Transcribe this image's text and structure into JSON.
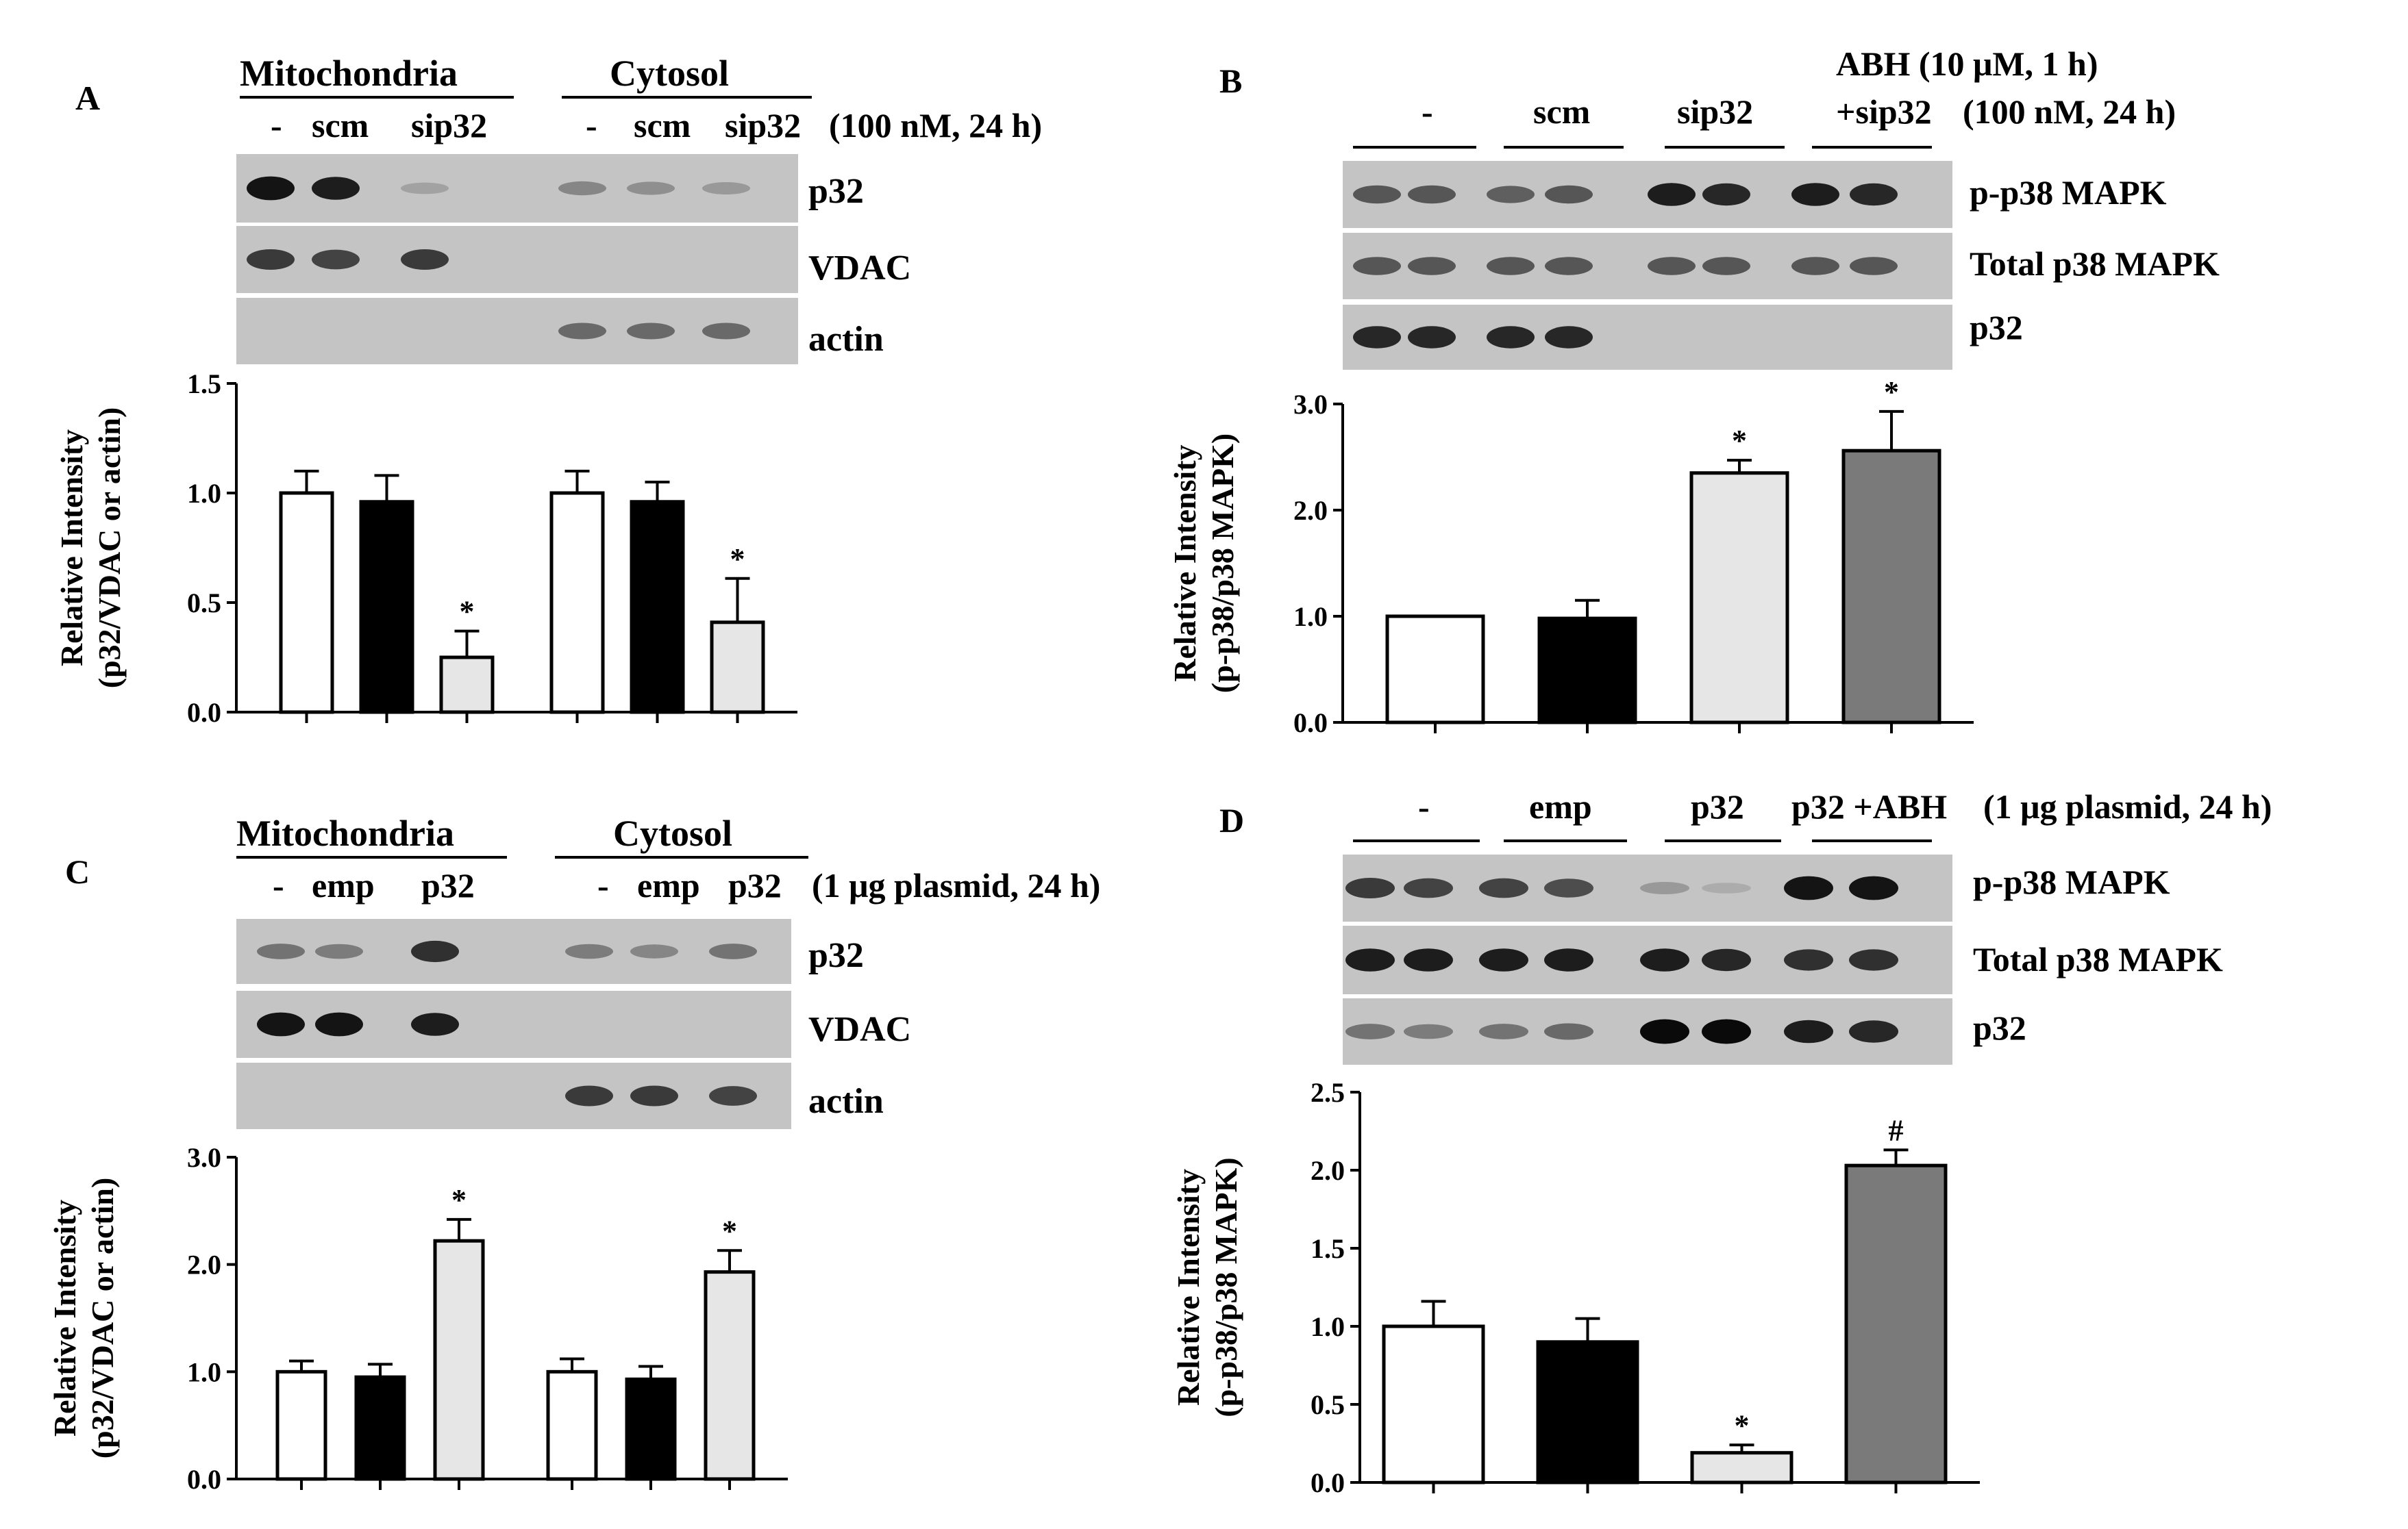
{
  "colors": {
    "control": "#ffffff",
    "scm_or_emp": "#000000",
    "sip32_or_p32": "#e6e6e6",
    "abh": "#7a7a7a",
    "blot_bg": "#c4c4c4",
    "axis": "#000000"
  },
  "panels": [
    {
      "id": "A",
      "letter": "A",
      "groups": [
        {
          "label": "Mitochondria",
          "lanes": [
            "-",
            "scm",
            "sip32"
          ]
        },
        {
          "label": "Cytosol",
          "lanes": [
            "-",
            "scm",
            "sip32"
          ]
        }
      ],
      "treatment_note": "(100 nM, 24 h)",
      "blots": [
        {
          "label": "p32",
          "intensity": [
            0.95,
            0.9,
            0.2,
            0.35,
            0.3,
            0.25
          ]
        },
        {
          "label": "VDAC",
          "intensity": [
            0.75,
            0.7,
            0.75,
            0,
            0,
            0
          ]
        },
        {
          "label": "actin",
          "intensity": [
            0,
            0,
            0,
            0.5,
            0.5,
            0.5
          ]
        }
      ]
    },
    {
      "id": "B",
      "letter": "B",
      "lane_groups": [
        "-",
        "scm",
        "sip32",
        "+sip32"
      ],
      "header_line": "ABH (10 μM, 1 h)",
      "treatment_note": "(100 nM, 24 h)",
      "blots": [
        {
          "label": "p-p38 MAPK",
          "intensity": [
            0.6,
            0.6,
            0.55,
            0.6,
            0.9,
            0.85,
            0.9,
            0.85
          ]
        },
        {
          "label": "Total p38 MAPK",
          "intensity": [
            0.6,
            0.6,
            0.6,
            0.6,
            0.6,
            0.6,
            0.6,
            0.6
          ]
        },
        {
          "label": "p32",
          "intensity": [
            0.85,
            0.85,
            0.85,
            0.85,
            0,
            0,
            0,
            0
          ]
        }
      ]
    },
    {
      "id": "C",
      "letter": "C",
      "groups": [
        {
          "label": "Mitochondria",
          "lanes": [
            "-",
            "emp",
            "p32"
          ]
        },
        {
          "label": "Cytosol",
          "lanes": [
            "-",
            "emp",
            "p32"
          ]
        }
      ],
      "treatment_note": "(1 μg plasmid, 24 h)",
      "blots": [
        {
          "label": "p32",
          "intensity": [
            0.45,
            0.4,
            0.8,
            0.4,
            0.35,
            0.45
          ]
        },
        {
          "label": "VDAC",
          "intensity": [
            0.95,
            0.95,
            0.9,
            0,
            0,
            0
          ]
        },
        {
          "label": "actin",
          "intensity": [
            0,
            0,
            0,
            0.75,
            0.75,
            0.7
          ]
        }
      ]
    },
    {
      "id": "D",
      "letter": "D",
      "lane_groups": [
        "-",
        "emp",
        "p32",
        "p32 +ABH"
      ],
      "treatment_note": "(1 μg plasmid, 24 h)",
      "blots": [
        {
          "label": "p-p38 MAPK",
          "intensity": [
            0.75,
            0.7,
            0.7,
            0.65,
            0.25,
            0.15,
            0.95,
            0.95
          ]
        },
        {
          "label": "Total p38 MAPK",
          "intensity": [
            0.9,
            0.9,
            0.9,
            0.9,
            0.9,
            0.85,
            0.8,
            0.8
          ]
        },
        {
          "label": "p32",
          "intensity": [
            0.45,
            0.4,
            0.45,
            0.5,
            1.0,
            1.0,
            0.9,
            0.85
          ]
        }
      ]
    }
  ],
  "chart_data": [
    {
      "panel": "A",
      "type": "bar",
      "ylabel": "Relative Intensity",
      "ylabel2": "(p32/VDAC or actin)",
      "ylim": [
        0,
        1.5
      ],
      "yticks": [
        "0.0",
        "0.5",
        "1.0",
        "1.5"
      ],
      "groups": [
        {
          "bars": [
            {
              "value": 1.0,
              "error": 0.1,
              "fill": "control",
              "sig": ""
            },
            {
              "value": 0.96,
              "error": 0.12,
              "fill": "scm_or_emp",
              "sig": ""
            },
            {
              "value": 0.25,
              "error": 0.12,
              "fill": "sip32_or_p32",
              "sig": "*"
            }
          ]
        },
        {
          "bars": [
            {
              "value": 1.0,
              "error": 0.1,
              "fill": "control",
              "sig": ""
            },
            {
              "value": 0.96,
              "error": 0.09,
              "fill": "scm_or_emp",
              "sig": ""
            },
            {
              "value": 0.41,
              "error": 0.2,
              "fill": "sip32_or_p32",
              "sig": "*"
            }
          ]
        }
      ]
    },
    {
      "panel": "B",
      "type": "bar",
      "ylabel": "Relative Intensity",
      "ylabel2": "(p-p38/p38 MAPK)",
      "ylim": [
        0,
        3.0
      ],
      "yticks": [
        "0.0",
        "1.0",
        "2.0",
        "3.0"
      ],
      "groups": [
        {
          "bars": [
            {
              "value": 1.0,
              "error": 0.0,
              "fill": "control",
              "sig": ""
            },
            {
              "value": 0.98,
              "error": 0.17,
              "fill": "scm_or_emp",
              "sig": ""
            },
            {
              "value": 2.35,
              "error": 0.12,
              "fill": "sip32_or_p32",
              "sig": "*"
            },
            {
              "value": 2.56,
              "error": 0.37,
              "fill": "abh",
              "sig": "*"
            }
          ]
        }
      ]
    },
    {
      "panel": "C",
      "type": "bar",
      "ylabel": "Relative Intensity",
      "ylabel2": "(p32/VDAC or actin)",
      "ylim": [
        0,
        3.0
      ],
      "yticks": [
        "0.0",
        "1.0",
        "2.0",
        "3.0"
      ],
      "groups": [
        {
          "bars": [
            {
              "value": 1.0,
              "error": 0.1,
              "fill": "control",
              "sig": ""
            },
            {
              "value": 0.95,
              "error": 0.12,
              "fill": "scm_or_emp",
              "sig": ""
            },
            {
              "value": 2.22,
              "error": 0.2,
              "fill": "sip32_or_p32",
              "sig": "*"
            }
          ]
        },
        {
          "bars": [
            {
              "value": 1.0,
              "error": 0.12,
              "fill": "control",
              "sig": ""
            },
            {
              "value": 0.93,
              "error": 0.12,
              "fill": "scm_or_emp",
              "sig": ""
            },
            {
              "value": 1.93,
              "error": 0.2,
              "fill": "sip32_or_p32",
              "sig": "*"
            }
          ]
        }
      ]
    },
    {
      "panel": "D",
      "type": "bar",
      "ylabel": "Relative Intensity",
      "ylabel2": "(p-p38/p38 MAPK)",
      "ylim": [
        0,
        2.5
      ],
      "yticks": [
        "0.0",
        "0.5",
        "1.0",
        "1.5",
        "2.0",
        "2.5"
      ],
      "groups": [
        {
          "bars": [
            {
              "value": 1.0,
              "error": 0.16,
              "fill": "control",
              "sig": ""
            },
            {
              "value": 0.9,
              "error": 0.15,
              "fill": "scm_or_emp",
              "sig": ""
            },
            {
              "value": 0.19,
              "error": 0.05,
              "fill": "sip32_or_p32",
              "sig": "*"
            },
            {
              "value": 2.03,
              "error": 0.1,
              "fill": "abh",
              "sig": "#"
            }
          ]
        }
      ]
    }
  ]
}
